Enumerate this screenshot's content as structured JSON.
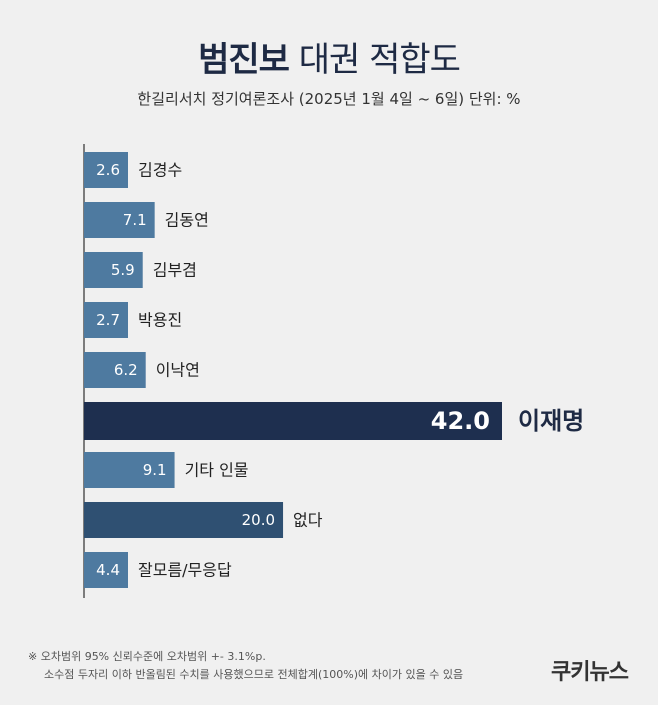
{
  "header": {
    "title_bold": "범진보",
    "title_rest": "대권 적합도",
    "subtitle": "한길리서치 정기여론조사 (2025년 1월 4일 ~ 6일) 단위: %"
  },
  "chart_data": {
    "type": "bar",
    "orientation": "horizontal",
    "categories": [
      "김경수",
      "김동연",
      "김부겸",
      "박용진",
      "이낙연",
      "이재명",
      "기타 인물",
      "없다",
      "잘모름/무응답"
    ],
    "values": [
      2.6,
      7.1,
      5.9,
      2.7,
      6.2,
      42.0,
      9.1,
      20.0,
      4.4
    ],
    "value_labels": [
      "2.6",
      "7.1",
      "5.9",
      "2.7",
      "6.2",
      "42.0",
      "9.1",
      "20.0",
      "4.4"
    ],
    "title": "범진보 대권 적합도",
    "grid": false,
    "colors": {
      "default": "#4e7aa0",
      "highlight": "#1e2f4f",
      "secondary": "#2f5072"
    },
    "bar_color_keys": [
      "default",
      "default",
      "default",
      "default",
      "default",
      "highlight",
      "default",
      "secondary",
      "default"
    ],
    "emphasized_index": 5
  },
  "footnote": {
    "line1": "※ 오차범위 95% 신뢰수준에 오차범위 +- 3.1%p.",
    "line2": "소수점 두자리 이하 반올림된 수치를 사용했으므로 전체합계(100%)에 차이가 있을 수 있음"
  },
  "brand": "쿠키뉴스"
}
